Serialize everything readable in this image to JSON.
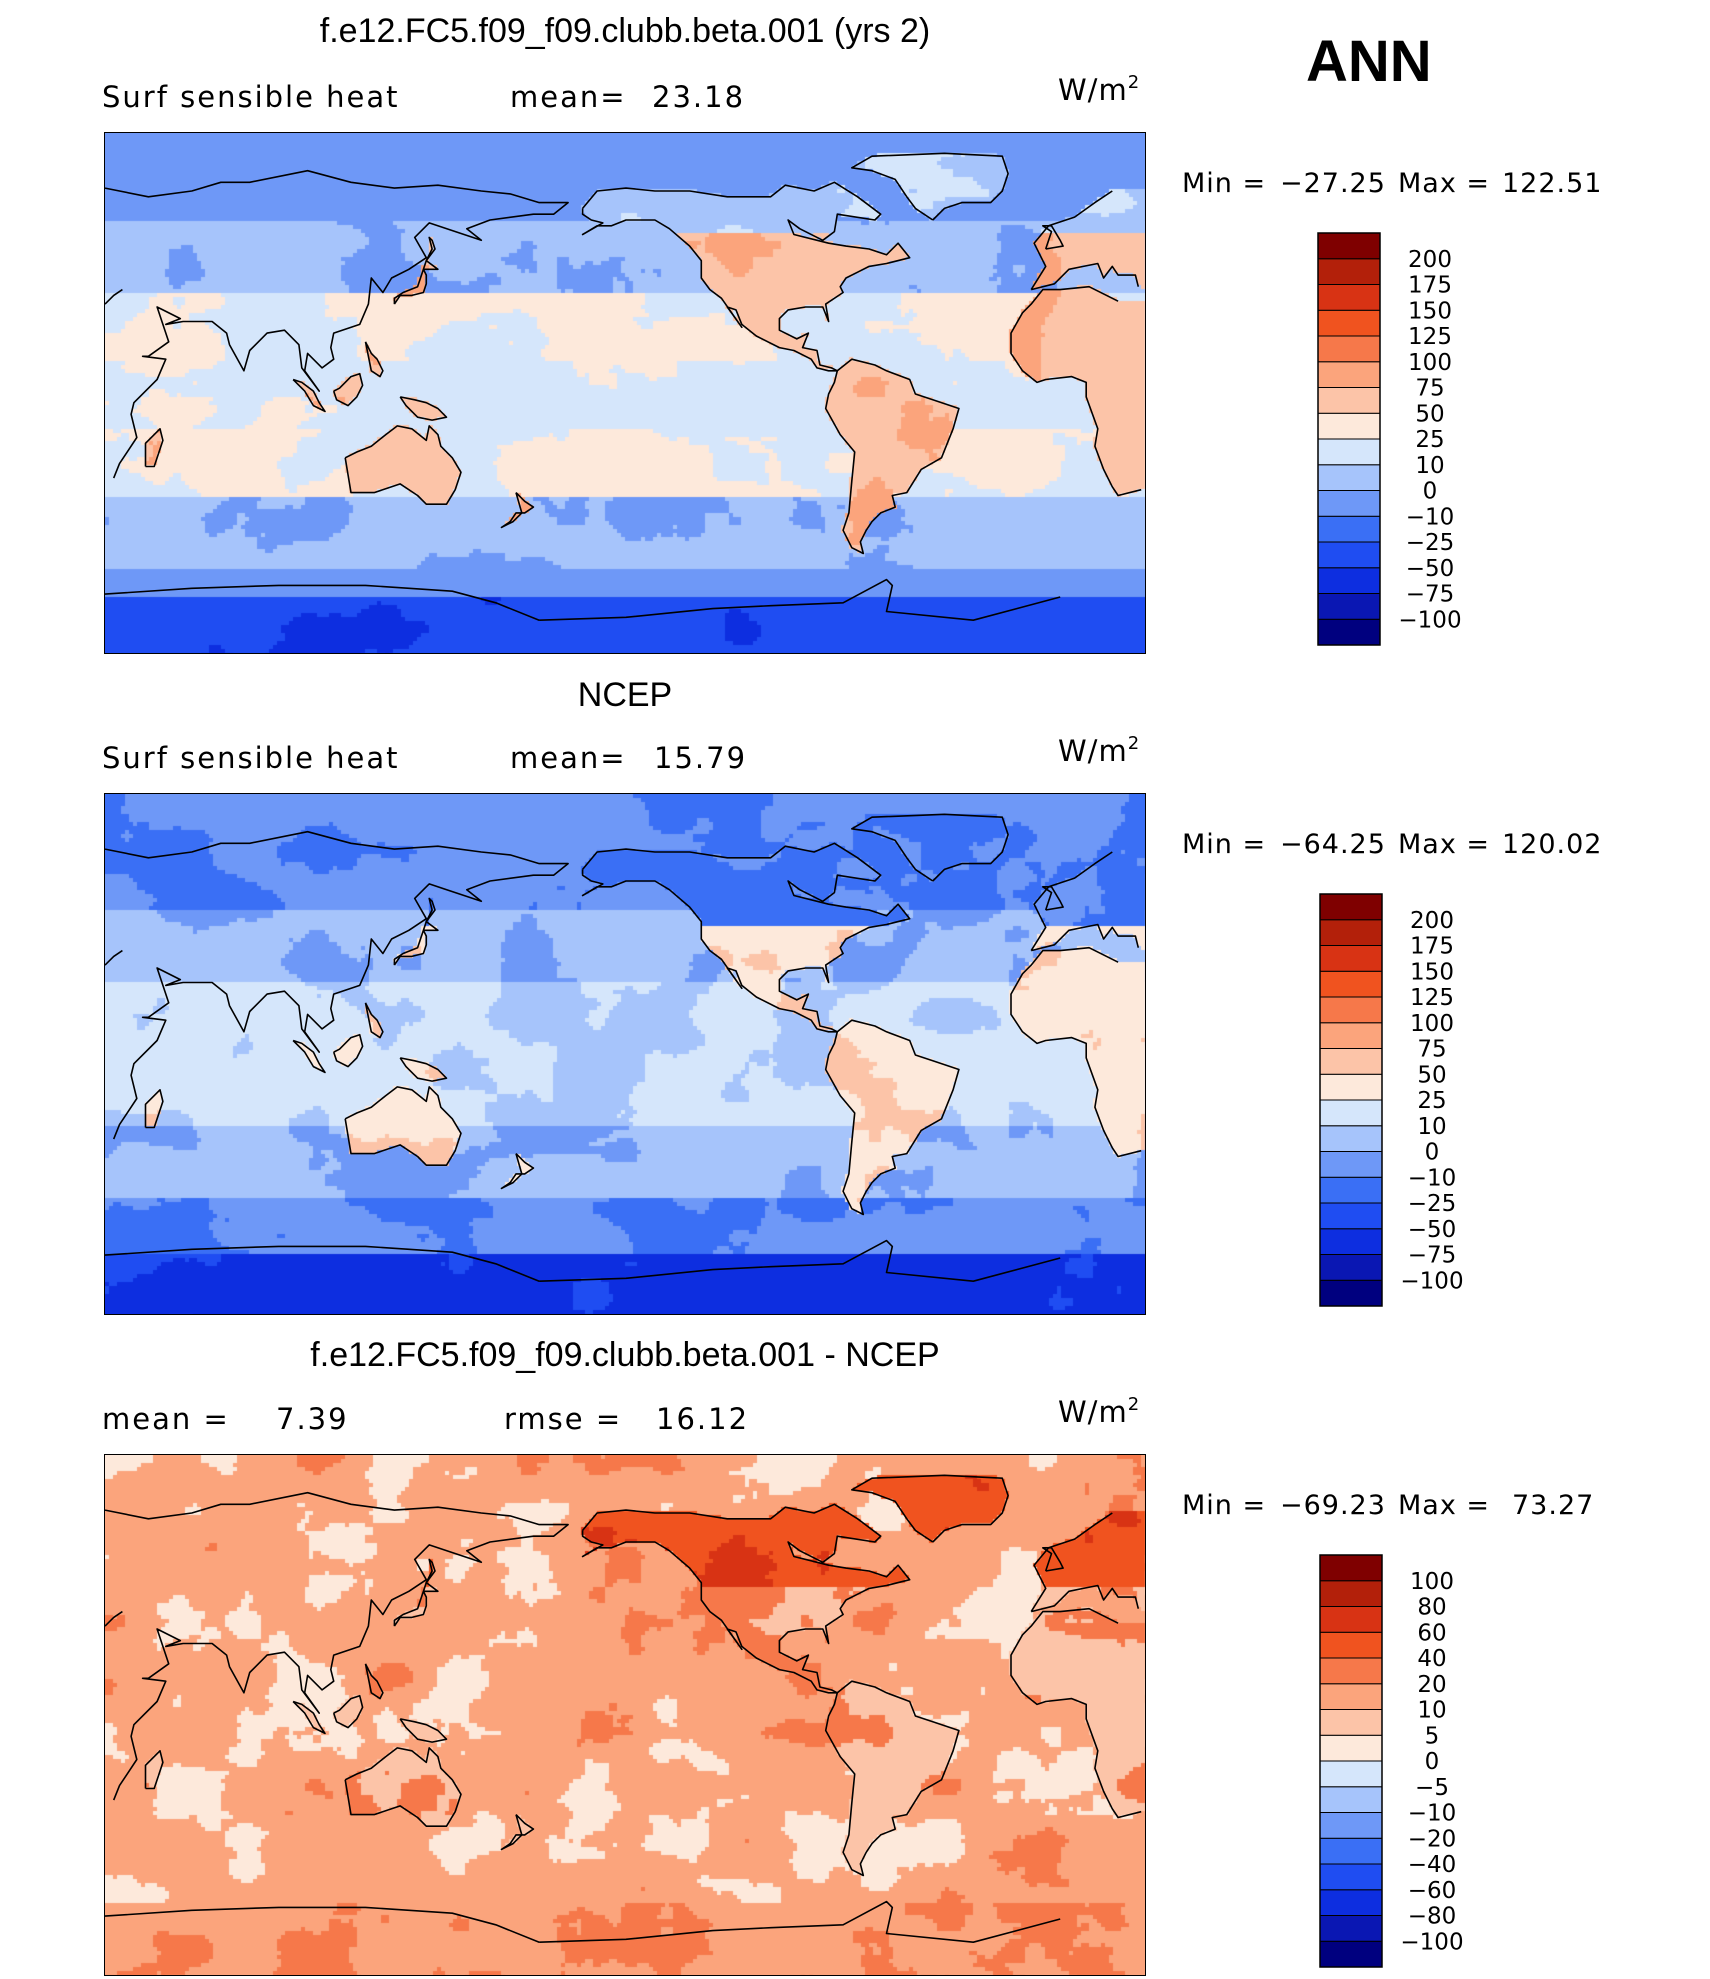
{
  "season": "ANN",
  "units": "W/m",
  "units_exp": "2",
  "colors": {
    "ramp_abs": [
      "#00007f",
      "#0a17b3",
      "#0d2ee0",
      "#1f4df2",
      "#3a6ff5",
      "#6e98f7",
      "#a6c4fb",
      "#d5e6fb",
      "#fde9db",
      "#fcc4a8",
      "#fba47c",
      "#f6784a",
      "#f0531f",
      "#d83314",
      "#b3200a",
      "#7f0000"
    ],
    "ramp_diff": [
      "#00007f",
      "#0a17b3",
      "#0d2ee0",
      "#1f4df2",
      "#3a6ff5",
      "#6e98f7",
      "#a6c4fb",
      "#d5e6fb",
      "#fde9db",
      "#fcc4a8",
      "#fba47c",
      "#f6784a",
      "#f0531f",
      "#d83314",
      "#b3200a",
      "#7f0000"
    ]
  },
  "chart_data": [
    {
      "type": "heatmap",
      "title": "f.e12.FC5.f09_f09.clubb.beta.001 (yrs 2)",
      "variable": "Surf  sensible  heat",
      "mean_label": "mean=",
      "mean": "23.18",
      "min_label": "Min  =",
      "min": "−27.25",
      "max_label": "Max  =",
      "max": "122.51",
      "levels": [
        "200",
        "175",
        "150",
        "125",
        "100",
        "75",
        "50",
        "25",
        "10",
        "0",
        "−10",
        "−25",
        "−50",
        "−75",
        "−100"
      ],
      "pattern": "model"
    },
    {
      "type": "heatmap",
      "title": "NCEP",
      "variable": "Surf  sensible  heat",
      "mean_label": "mean=",
      "mean": "15.79",
      "min_label": "Min  =",
      "min": "−64.25",
      "max_label": "Max  =",
      "max": "120.02",
      "levels": [
        "200",
        "175",
        "150",
        "125",
        "100",
        "75",
        "50",
        "25",
        "10",
        "0",
        "−10",
        "−25",
        "−50",
        "−75",
        "−100"
      ],
      "pattern": "obs"
    },
    {
      "type": "heatmap",
      "title": "f.e12.FC5.f09_f09.clubb.beta.001 - NCEP",
      "mean_label": "mean  =",
      "mean": "7.39",
      "rmse_label": "rmse  =",
      "rmse": "16.12",
      "min_label": "Min  =",
      "min": "−69.23",
      "max_label": "Max  =",
      "max": "73.27",
      "levels": [
        "100",
        "80",
        "60",
        "40",
        "20",
        "10",
        "5",
        "0",
        "−5",
        "−10",
        "−20",
        "−40",
        "−60",
        "−80",
        "−100"
      ],
      "pattern": "diff"
    }
  ]
}
